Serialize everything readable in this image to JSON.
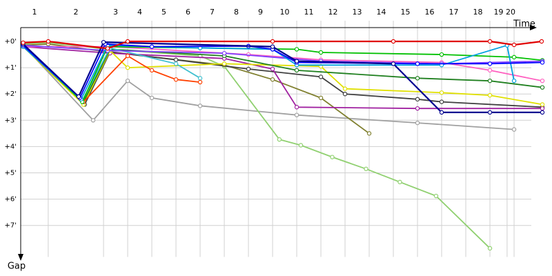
{
  "chart_data": {
    "type": "line",
    "x_label": "Time",
    "y_label": "Gap",
    "xlim": [
      0,
      22
    ],
    "ylim": [
      0,
      8.2
    ],
    "xticks": [
      {
        "value": 1.14,
        "label": "1"
      },
      {
        "value": 3.43,
        "label": "2"
      },
      {
        "value": 4.43,
        "label": "3"
      },
      {
        "value": 5.43,
        "label": "4"
      },
      {
        "value": 6.43,
        "label": "5"
      },
      {
        "value": 7.43,
        "label": "6"
      },
      {
        "value": 8.43,
        "label": "7"
      },
      {
        "value": 9.43,
        "label": "8"
      },
      {
        "value": 10.43,
        "label": "9"
      },
      {
        "value": 11.43,
        "label": "10"
      },
      {
        "value": 12.43,
        "label": "11"
      },
      {
        "value": 13.43,
        "label": "12"
      },
      {
        "value": 14.43,
        "label": "13"
      },
      {
        "value": 15.43,
        "label": "14"
      },
      {
        "value": 16.43,
        "label": "15"
      },
      {
        "value": 17.43,
        "label": "16"
      },
      {
        "value": 18.43,
        "label": "17"
      },
      {
        "value": 19.43,
        "label": "18"
      },
      {
        "value": 20.14,
        "label": "19"
      },
      {
        "value": 20.43,
        "label": "20"
      }
    ],
    "yticks": [
      {
        "value": 0,
        "label": "+0'"
      },
      {
        "value": 1,
        "label": "+1'"
      },
      {
        "value": 2,
        "label": "+2'"
      },
      {
        "value": 3,
        "label": "+3'"
      },
      {
        "value": 4,
        "label": "+4'"
      },
      {
        "value": 5,
        "label": "+5'"
      },
      {
        "value": 6,
        "label": "+6'"
      },
      {
        "value": 7,
        "label": "+7'"
      }
    ],
    "grid": true,
    "series": [
      {
        "color": "#a0a0a0",
        "x": [
          0.1,
          3.0,
          4.43,
          5.43,
          7.43,
          11.43,
          16.43,
          20.43
        ],
        "values": [
          0.15,
          3.0,
          1.5,
          2.15,
          2.45,
          2.8,
          3.1,
          3.35
        ]
      },
      {
        "color": "#90d070",
        "x": [
          0.1,
          1.14,
          3.6,
          7.43,
          8.43,
          10.71,
          11.6,
          12.9,
          14.3,
          15.7,
          17.2,
          19.43
        ],
        "values": [
          0.1,
          0.05,
          0.3,
          0.55,
          0.95,
          3.73,
          3.95,
          4.4,
          4.85,
          5.35,
          5.88,
          7.87
        ]
      },
      {
        "color": "#808030",
        "x": [
          0.1,
          1.14,
          3.6,
          8.43,
          10.43,
          12.43,
          14.43
        ],
        "values": [
          0.15,
          0.1,
          0.4,
          0.9,
          1.45,
          2.15,
          3.5
        ]
      },
      {
        "color": "#404040",
        "x": [
          0.1,
          2.65,
          3.7,
          6.43,
          9.43,
          12.43,
          13.43,
          16.43,
          17.43,
          21.6
        ],
        "values": [
          0.15,
          2.4,
          0.4,
          0.7,
          1.05,
          1.35,
          2.0,
          2.2,
          2.3,
          2.5
        ]
      },
      {
        "color": "#a020a0",
        "x": [
          0.1,
          3.7,
          8.43,
          10.43,
          11.43,
          16.43,
          21.6
        ],
        "values": [
          0.2,
          0.45,
          0.65,
          1.05,
          2.5,
          2.55,
          2.55
        ]
      },
      {
        "color": "#e0e000",
        "x": [
          0.1,
          2.6,
          3.7,
          4.43,
          8.43,
          12.43,
          13.43,
          17.43,
          19.43,
          21.6
        ],
        "values": [
          0.2,
          2.4,
          0.35,
          1.0,
          0.85,
          0.95,
          1.8,
          1.95,
          2.05,
          2.4
        ]
      },
      {
        "color": "#208020",
        "x": [
          0.1,
          2.6,
          3.7,
          8.43,
          11.43,
          16.43,
          19.43,
          21.6
        ],
        "values": [
          0.2,
          2.3,
          0.3,
          0.55,
          1.1,
          1.4,
          1.5,
          1.75
        ]
      },
      {
        "color": "#ff60c0",
        "x": [
          0.1,
          3.7,
          9.43,
          12.43,
          17.43,
          19.43,
          21.6
        ],
        "values": [
          0.2,
          0.2,
          0.5,
          0.7,
          0.8,
          1.1,
          1.5
        ]
      },
      {
        "color": "#40c0d0",
        "x": [
          0.1,
          2.55,
          3.7,
          6.43,
          7.43
        ],
        "values": [
          0.2,
          2.25,
          0.25,
          0.85,
          1.4
        ]
      },
      {
        "color": "#ff4000",
        "x": [
          0.1,
          2.6,
          4.43,
          5.43,
          6.43,
          7.43
        ],
        "values": [
          0.2,
          2.3,
          0.55,
          1.1,
          1.45,
          1.55
        ]
      },
      {
        "color": "#00c000",
        "x": [
          0.1,
          2.55,
          3.6,
          7.43,
          11.43,
          12.43,
          17.43,
          20.43,
          21.6
        ],
        "values": [
          0.15,
          2.3,
          0.2,
          0.25,
          0.3,
          0.42,
          0.5,
          0.6,
          0.72
        ]
      },
      {
        "color": "#8040ff",
        "x": [
          0.1,
          3.6,
          8.43,
          12.43,
          17.43,
          21.6
        ],
        "values": [
          0.15,
          0.35,
          0.45,
          0.75,
          0.85,
          0.75
        ]
      },
      {
        "color": "#00a0e0",
        "x": [
          0.1,
          2.5,
          3.6,
          7.43,
          10.43,
          11.43,
          17.43,
          20.14,
          20.43
        ],
        "values": [
          0.2,
          2.2,
          0.15,
          0.25,
          0.3,
          0.9,
          0.9,
          0.15,
          1.5
        ]
      },
      {
        "color": "#0000ff",
        "x": [
          0.1,
          2.45,
          3.5,
          5.43,
          9.43,
          10.43,
          11.43,
          16.43,
          19.43,
          21.6
        ],
        "values": [
          0.15,
          2.15,
          0.1,
          0.2,
          0.18,
          0.3,
          0.8,
          0.85,
          0.85,
          0.8
        ]
      },
      {
        "color": "#000090",
        "x": [
          0.1,
          2.4,
          3.43,
          10.43,
          11.43,
          15.43,
          17.43,
          19.43,
          21.6
        ],
        "values": [
          0.1,
          2.1,
          0.03,
          0.2,
          0.75,
          0.85,
          2.7,
          2.7,
          2.7
        ]
      },
      {
        "color": "#e00000",
        "x": [
          0.1,
          1.14,
          3.6,
          4.43,
          10.43,
          15.43,
          19.43,
          20.43,
          21.57
        ],
        "values": [
          0.05,
          0,
          0.27,
          0,
          0,
          0,
          0,
          0.13,
          0
        ]
      }
    ]
  }
}
